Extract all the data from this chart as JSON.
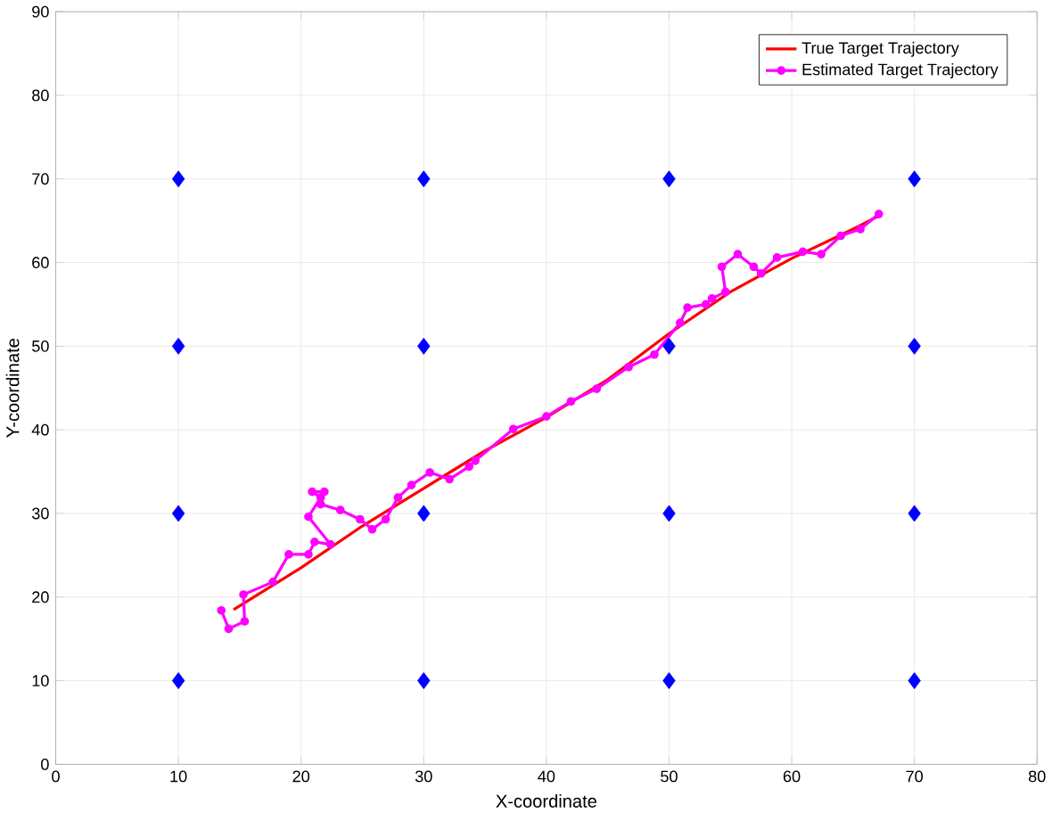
{
  "chart_data": {
    "type": "line",
    "xlabel": "X-coordinate",
    "ylabel": "Y-coordinate",
    "xlim": [
      0,
      80
    ],
    "ylim": [
      0,
      90
    ],
    "xticks": [
      0,
      10,
      20,
      30,
      40,
      50,
      60,
      70,
      80
    ],
    "yticks": [
      0,
      10,
      20,
      30,
      40,
      50,
      60,
      70,
      80,
      90
    ],
    "grid": true,
    "legend": "top right",
    "series": [
      {
        "type": "scatter",
        "color": "#0000ff",
        "marker": "diamond",
        "x": [
          10,
          10,
          10,
          10,
          30,
          30,
          30,
          30,
          50,
          50,
          50,
          50,
          70,
          70,
          70,
          70
        ],
        "values": [
          10,
          30,
          50,
          70,
          10,
          30,
          50,
          70,
          10,
          30,
          50,
          70,
          10,
          30,
          50,
          70
        ]
      },
      {
        "name": "True Target Trajectory",
        "color": "#ff0000",
        "marker": "none",
        "x": [
          14.5,
          20,
          25,
          30,
          35,
          40,
          45,
          50,
          55,
          60,
          65,
          67
        ],
        "values": [
          18.5,
          23.5,
          28.5,
          33,
          37.5,
          41.5,
          46,
          51.5,
          56.5,
          60.5,
          64,
          65.5
        ]
      },
      {
        "name": "Estimated Target Trajectory",
        "color": "#ff00ff",
        "marker": "circle",
        "x": [
          13.5,
          14.1,
          15.4,
          15.3,
          17.7,
          19.0,
          20.6,
          21.1,
          22.4,
          20.6,
          21.6,
          20.9,
          21.9,
          21.6,
          23.2,
          24.8,
          25.8,
          26.9,
          27.9,
          29.0,
          30.5,
          32.1,
          33.7,
          34.2,
          37.3,
          40.0,
          42.0,
          44.1,
          46.7,
          48.8,
          50.9,
          51.5,
          53.0,
          53.5,
          54.6,
          54.3,
          55.6,
          56.9,
          57.5,
          58.8,
          60.9,
          62.4,
          64.0,
          65.6,
          67.1
        ],
        "values": [
          18.4,
          16.2,
          17.1,
          20.3,
          21.8,
          25.1,
          25.1,
          26.6,
          26.3,
          29.6,
          31.9,
          32.6,
          32.6,
          31.1,
          30.4,
          29.3,
          28.1,
          29.3,
          31.9,
          33.4,
          34.9,
          34.1,
          35.6,
          36.3,
          40.1,
          41.6,
          43.4,
          44.9,
          47.5,
          49.0,
          52.8,
          54.6,
          55.0,
          55.7,
          56.5,
          59.5,
          61.0,
          59.5,
          58.7,
          60.6,
          61.3,
          61.0,
          63.2,
          64.0,
          65.8
        ]
      }
    ]
  }
}
